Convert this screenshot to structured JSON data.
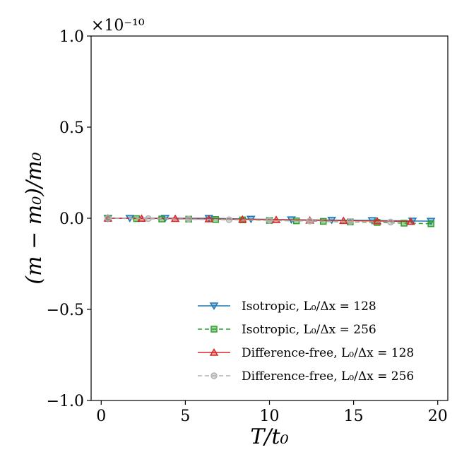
{
  "chart_data": {
    "type": "line",
    "xlabel": "T/t₀",
    "ylabel": "(m − m₀)/m₀",
    "y_multiplier": "×10⁻¹⁰",
    "xlim": [
      -0.6,
      20.6
    ],
    "ylim": [
      -1.0,
      1.0
    ],
    "x_ticks": [
      0,
      5,
      10,
      15,
      20
    ],
    "x_tick_labels": [
      "0",
      "5",
      "10",
      "15",
      "20"
    ],
    "y_ticks": [
      -1.0,
      -0.5,
      0.0,
      0.5,
      1.0
    ],
    "y_tick_labels": [
      "−1.0",
      "−0.5",
      "0.0",
      "0.5",
      "1.0"
    ],
    "grid": false,
    "legend_position": "lower-right",
    "series": [
      {
        "name": "Isotropic, L₀/Δx = 128",
        "marker": "triangle-down",
        "line": "solid",
        "color": "#1f77b4",
        "x": [
          0.4,
          1.7,
          3.8,
          6.4,
          8.9,
          11.3,
          13.7,
          16.1,
          18.5,
          19.6
        ],
        "y": [
          0.0,
          0.0,
          0.0,
          0.0,
          -0.005,
          -0.008,
          -0.01,
          -0.012,
          -0.015,
          -0.016
        ]
      },
      {
        "name": "Isotropic, L₀/Δx = 256",
        "marker": "square",
        "line": "dashed",
        "color": "#2ca02c",
        "x": [
          0.4,
          2.1,
          3.6,
          5.2,
          6.8,
          8.4,
          10.0,
          11.6,
          13.2,
          14.8,
          16.4,
          18.0,
          19.6
        ],
        "y": [
          0.0,
          -0.002,
          -0.004,
          -0.005,
          -0.007,
          -0.009,
          -0.012,
          -0.014,
          -0.017,
          -0.02,
          -0.023,
          -0.027,
          -0.03
        ]
      },
      {
        "name": "Difference-free, L₀/Δx = 128",
        "marker": "triangle-up",
        "line": "solid",
        "color": "#d62728",
        "x": [
          0.4,
          2.4,
          4.4,
          6.4,
          8.4,
          10.4,
          12.4,
          14.4,
          16.4,
          18.4
        ],
        "y": [
          0.0,
          -0.001,
          -0.002,
          -0.004,
          -0.006,
          -0.008,
          -0.011,
          -0.013,
          -0.015,
          -0.018
        ]
      },
      {
        "name": "Difference-free, L₀/Δx = 256",
        "marker": "circle",
        "line": "dashed",
        "color": "#b0b0b0",
        "x": [
          0.4,
          2.8,
          5.2,
          7.6,
          10.0,
          12.4,
          14.8,
          17.2
        ],
        "y": [
          0.0,
          -0.002,
          -0.005,
          -0.008,
          -0.011,
          -0.015,
          -0.018,
          -0.021
        ]
      }
    ]
  }
}
